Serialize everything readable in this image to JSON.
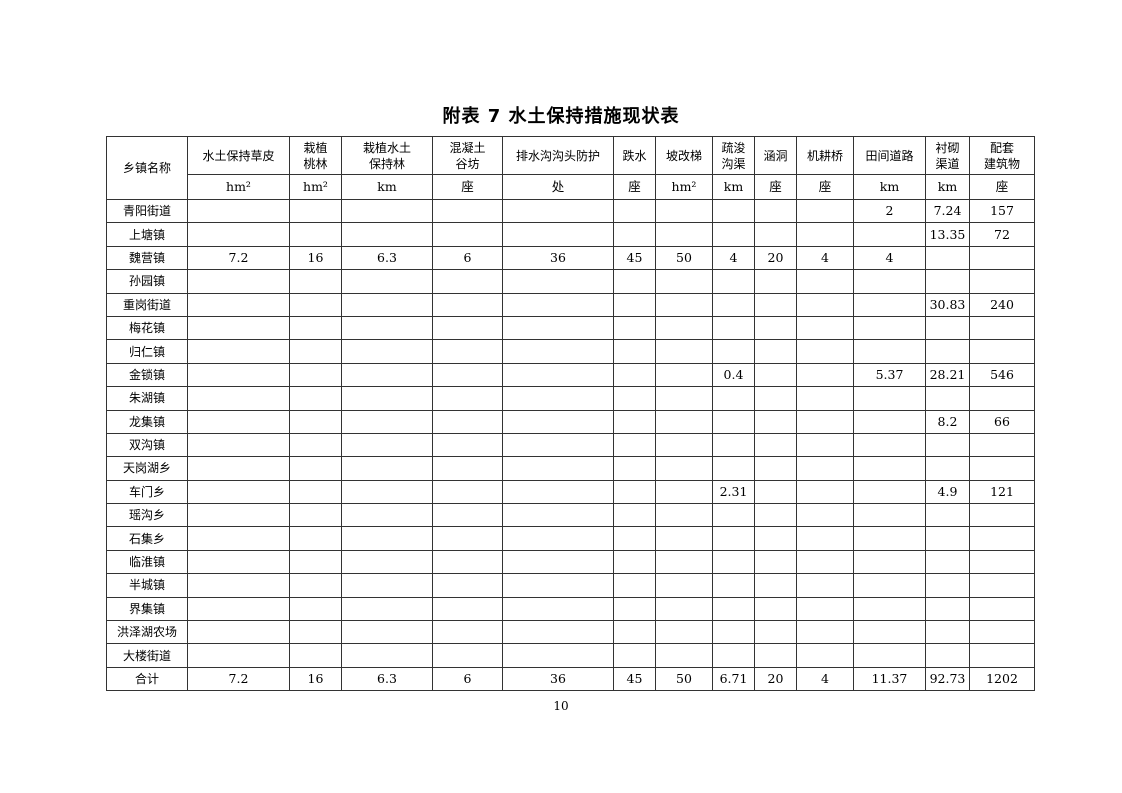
{
  "title": "附表 7   水土保持措施现状表",
  "page_number": "10",
  "table": {
    "name_header": "乡镇名称",
    "columns": [
      {
        "label": "水土保持草皮",
        "unit": "hm²"
      },
      {
        "label": "栽植\n桃林",
        "unit": "hm²"
      },
      {
        "label": "栽植水土\n保持林",
        "unit": "km"
      },
      {
        "label": "混凝土\n谷坊",
        "unit": "座"
      },
      {
        "label": "排水沟沟头防护",
        "unit": "处"
      },
      {
        "label": "跌水",
        "unit": "座"
      },
      {
        "label": "坡改梯",
        "unit": "hm²"
      },
      {
        "label": "疏浚\n沟渠",
        "unit": "km"
      },
      {
        "label": "涵洞",
        "unit": "座"
      },
      {
        "label": "机耕桥",
        "unit": "座"
      },
      {
        "label": "田间道路",
        "unit": "km"
      },
      {
        "label": "衬砌\n渠道",
        "unit": "km"
      },
      {
        "label": "配套\n建筑物",
        "unit": "座"
      }
    ],
    "rows": [
      {
        "name": "青阳街道",
        "values": [
          "",
          "",
          "",
          "",
          "",
          "",
          "",
          "",
          "",
          "",
          "2",
          "7.24",
          "157"
        ]
      },
      {
        "name": "上塘镇",
        "values": [
          "",
          "",
          "",
          "",
          "",
          "",
          "",
          "",
          "",
          "",
          "",
          "13.35",
          "72"
        ]
      },
      {
        "name": "魏营镇",
        "values": [
          "7.2",
          "16",
          "6.3",
          "6",
          "36",
          "45",
          "50",
          "4",
          "20",
          "4",
          "4",
          "",
          ""
        ]
      },
      {
        "name": "孙园镇",
        "values": [
          "",
          "",
          "",
          "",
          "",
          "",
          "",
          "",
          "",
          "",
          "",
          "",
          ""
        ]
      },
      {
        "name": "重岗街道",
        "values": [
          "",
          "",
          "",
          "",
          "",
          "",
          "",
          "",
          "",
          "",
          "",
          "30.83",
          "240"
        ]
      },
      {
        "name": "梅花镇",
        "values": [
          "",
          "",
          "",
          "",
          "",
          "",
          "",
          "",
          "",
          "",
          "",
          "",
          ""
        ]
      },
      {
        "name": "归仁镇",
        "values": [
          "",
          "",
          "",
          "",
          "",
          "",
          "",
          "",
          "",
          "",
          "",
          "",
          ""
        ]
      },
      {
        "name": "金锁镇",
        "values": [
          "",
          "",
          "",
          "",
          "",
          "",
          "",
          "0.4",
          "",
          "",
          "5.37",
          "28.21",
          "546"
        ]
      },
      {
        "name": "朱湖镇",
        "values": [
          "",
          "",
          "",
          "",
          "",
          "",
          "",
          "",
          "",
          "",
          "",
          "",
          ""
        ]
      },
      {
        "name": "龙集镇",
        "values": [
          "",
          "",
          "",
          "",
          "",
          "",
          "",
          "",
          "",
          "",
          "",
          "8.2",
          "66"
        ]
      },
      {
        "name": "双沟镇",
        "values": [
          "",
          "",
          "",
          "",
          "",
          "",
          "",
          "",
          "",
          "",
          "",
          "",
          ""
        ]
      },
      {
        "name": "天岗湖乡",
        "values": [
          "",
          "",
          "",
          "",
          "",
          "",
          "",
          "",
          "",
          "",
          "",
          "",
          ""
        ]
      },
      {
        "name": "车门乡",
        "values": [
          "",
          "",
          "",
          "",
          "",
          "",
          "",
          "2.31",
          "",
          "",
          "",
          "4.9",
          "121"
        ]
      },
      {
        "name": "瑶沟乡",
        "values": [
          "",
          "",
          "",
          "",
          "",
          "",
          "",
          "",
          "",
          "",
          "",
          "",
          ""
        ]
      },
      {
        "name": "石集乡",
        "values": [
          "",
          "",
          "",
          "",
          "",
          "",
          "",
          "",
          "",
          "",
          "",
          "",
          ""
        ]
      },
      {
        "name": "临淮镇",
        "values": [
          "",
          "",
          "",
          "",
          "",
          "",
          "",
          "",
          "",
          "",
          "",
          "",
          ""
        ]
      },
      {
        "name": "半城镇",
        "values": [
          "",
          "",
          "",
          "",
          "",
          "",
          "",
          "",
          "",
          "",
          "",
          "",
          ""
        ]
      },
      {
        "name": "界集镇",
        "values": [
          "",
          "",
          "",
          "",
          "",
          "",
          "",
          "",
          "",
          "",
          "",
          "",
          ""
        ]
      },
      {
        "name": "洪泽湖农场",
        "values": [
          "",
          "",
          "",
          "",
          "",
          "",
          "",
          "",
          "",
          "",
          "",
          "",
          ""
        ]
      },
      {
        "name": "大楼街道",
        "values": [
          "",
          "",
          "",
          "",
          "",
          "",
          "",
          "",
          "",
          "",
          "",
          "",
          ""
        ]
      },
      {
        "name": "合计",
        "values": [
          "7.2",
          "16",
          "6.3",
          "6",
          "36",
          "45",
          "50",
          "6.71",
          "20",
          "4",
          "11.37",
          "92.73",
          "1202"
        ]
      }
    ]
  }
}
